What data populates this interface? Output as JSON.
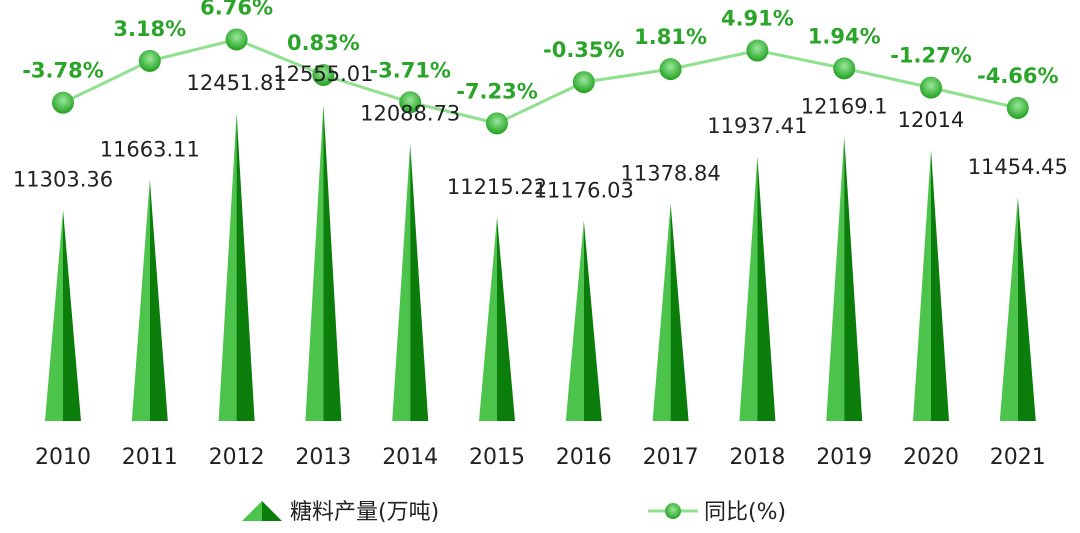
{
  "chart_data": {
    "type": "bar",
    "categories": [
      "2010",
      "2011",
      "2012",
      "2013",
      "2014",
      "2015",
      "2016",
      "2017",
      "2018",
      "2019",
      "2020",
      "2021"
    ],
    "series": [
      {
        "name": "糖料产量(万吨)",
        "kind": "bar",
        "values": [
          11303.36,
          11663.11,
          12451.81,
          12555.01,
          12088.73,
          11215.22,
          11176.03,
          11378.84,
          11937.41,
          12169.1,
          12014,
          11454.45
        ],
        "labels": [
          "11303.36",
          "11663.11",
          "12451.81",
          "12555.01",
          "12088.73",
          "11215.22",
          "11176.03",
          "11378.84",
          "11937.41",
          "12169.1",
          "12014",
          "11454.45"
        ]
      },
      {
        "name": "同比(%)",
        "kind": "line",
        "values": [
          -3.78,
          3.18,
          6.76,
          0.83,
          -3.71,
          -7.23,
          -0.35,
          1.81,
          4.91,
          1.94,
          -1.27,
          -4.66
        ],
        "labels": [
          "-3.78%",
          "3.18%",
          "6.76%",
          "0.83%",
          "-3.71%",
          "-7.23%",
          "-0.35%",
          "1.81%",
          "4.91%",
          "1.94%",
          "-1.27%",
          "-4.66%"
        ]
      }
    ],
    "title": "",
    "xlabel": "",
    "ylabel": "",
    "bar_ylim": [
      8800,
      12900
    ],
    "line_ylim": [
      -15,
      10
    ],
    "grid": false,
    "legend": "bottom",
    "colors": {
      "bar_light": "#4cc44c",
      "bar_dark": "#0a7d0a",
      "line": "#8fe08f",
      "marker_light": "#8fe38f",
      "marker_dark": "#1fa01f",
      "pct_text": "#2aa52a"
    }
  }
}
